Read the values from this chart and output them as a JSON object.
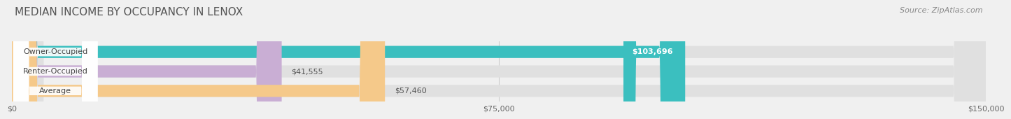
{
  "title": "MEDIAN INCOME BY OCCUPANCY IN LENOX",
  "source": "Source: ZipAtlas.com",
  "categories": [
    "Owner-Occupied",
    "Renter-Occupied",
    "Average"
  ],
  "values": [
    103696,
    41555,
    57460
  ],
  "bar_colors": [
    "#3bbfbf",
    "#c9aed4",
    "#f5c98a"
  ],
  "value_labels": [
    "$103,696",
    "$41,555",
    "$57,460"
  ],
  "value_label_colors": [
    "#ffffff",
    "#555555",
    "#555555"
  ],
  "xlim": [
    0,
    150000
  ],
  "xticks": [
    0,
    75000,
    150000
  ],
  "xtick_labels": [
    "$0",
    "$75,000",
    "$150,000"
  ],
  "title_fontsize": 11,
  "source_fontsize": 8,
  "label_fontsize": 8,
  "bar_height": 0.62,
  "background_color": "#f0f0f0",
  "bar_bg_color": "#e0e0e0"
}
